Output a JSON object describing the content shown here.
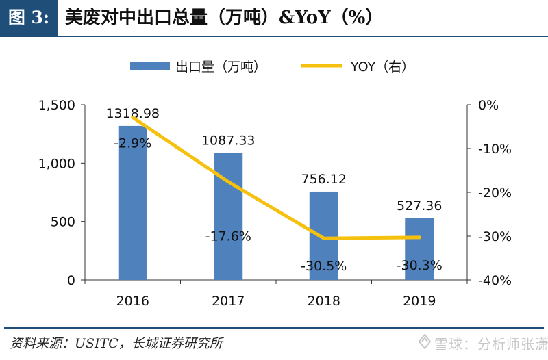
{
  "header": {
    "figure_label": "图 3:",
    "title": "美废对中出口总量（万吨）&YoY（%）"
  },
  "chart_data": {
    "type": "bar",
    "categories": [
      "2016",
      "2017",
      "2018",
      "2019"
    ],
    "series": [
      {
        "name": "出口量（万吨）",
        "type": "bar",
        "axis": "left",
        "values": [
          1318.98,
          1087.33,
          756.12,
          527.36
        ],
        "labels": [
          "1318.98",
          "1087.33",
          "756.12",
          "527.36"
        ],
        "color": "#4f81bd"
      },
      {
        "name": "YOY（右）",
        "type": "line",
        "axis": "right",
        "values": [
          -2.9,
          -17.6,
          -30.5,
          -30.3
        ],
        "labels": [
          "-2.9%",
          "-17.6%",
          "-30.5%",
          "-30.3%"
        ],
        "color": "#f5c10e"
      }
    ],
    "y_left": {
      "ylim": [
        0,
        1500
      ],
      "ticks": [
        0,
        500,
        1000,
        1500
      ],
      "tick_labels": [
        "0",
        "500",
        "1,000",
        "1,500"
      ]
    },
    "y_right": {
      "ylim": [
        -40,
        0
      ],
      "ticks": [
        0,
        -10,
        -20,
        -30,
        -40
      ],
      "tick_labels": [
        "0%",
        "-10%",
        "-20%",
        "-30%",
        "-40%"
      ]
    },
    "legend_position": "top",
    "grid": false
  },
  "footer": {
    "source": "资料来源：USITC，长城证券研究所",
    "watermark": "雪球：分析师张潇"
  }
}
